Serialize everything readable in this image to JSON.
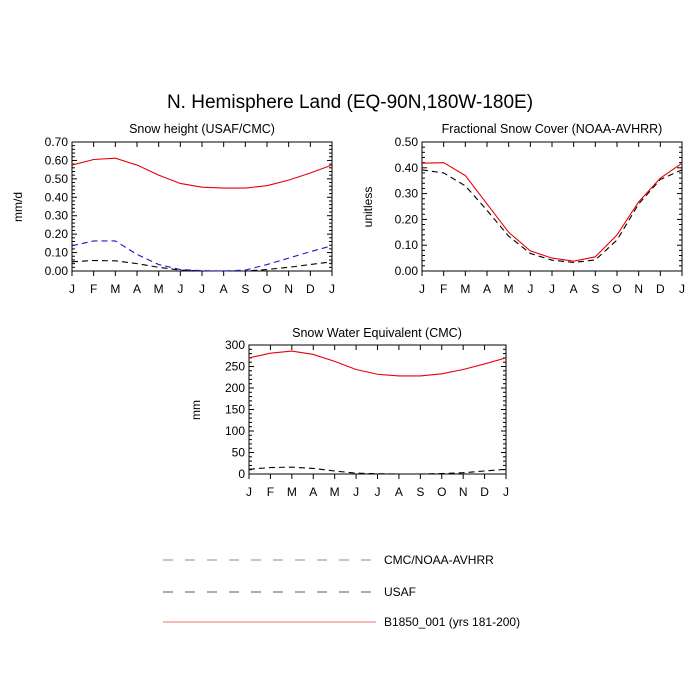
{
  "figure": {
    "title": "N. Hemisphere Land (EQ-90N,180W-180E)"
  },
  "colors": {
    "model": "#e8000a",
    "usaf": "#1a1acc",
    "obs": "#000000",
    "legend_obs": "#888888",
    "legend_usaf": "#4a5a9a",
    "legend_model": "#f07070"
  },
  "legend": {
    "items": [
      {
        "key": "obs",
        "label": "CMC/NOAA-AVHRR",
        "style": "dashed"
      },
      {
        "key": "usaf",
        "label": "USAF",
        "style": "dashed"
      },
      {
        "key": "model",
        "label": "B1850_001 (yrs 181-200)",
        "style": "solid"
      }
    ]
  },
  "chart_data": [
    {
      "id": "snow-height",
      "type": "line",
      "title": "Snow height (USAF/CMC)",
      "ylabel": "mm/d",
      "ylim": [
        0,
        0.7
      ],
      "yticks": [
        0,
        0.1,
        0.2,
        0.3,
        0.4,
        0.5,
        0.6,
        0.7
      ],
      "ytick_labels": [
        "0.00",
        "0.10",
        "0.20",
        "0.30",
        "0.40",
        "0.50",
        "0.60",
        "0.70"
      ],
      "x": [
        0,
        1,
        2,
        3,
        4,
        5,
        6,
        7,
        8,
        9,
        10,
        11,
        12
      ],
      "xtick_labels": [
        "J",
        "F",
        "M",
        "A",
        "M",
        "J",
        "J",
        "A",
        "S",
        "O",
        "N",
        "D",
        "J"
      ],
      "series": [
        {
          "name": "B1850_001 (yrs 181-200)",
          "key": "model",
          "style": "solid",
          "values": [
            0.575,
            0.605,
            0.612,
            0.575,
            0.52,
            0.475,
            0.455,
            0.45,
            0.45,
            0.463,
            0.493,
            0.532,
            0.575
          ]
        },
        {
          "name": "USAF",
          "key": "usaf",
          "style": "dashed",
          "values": [
            0.137,
            0.163,
            0.163,
            0.09,
            0.035,
            0.008,
            0.002,
            0.0,
            0.005,
            0.035,
            0.07,
            0.105,
            0.137
          ]
        },
        {
          "name": "CMC/NOAA-AVHRR",
          "key": "obs",
          "style": "dashed",
          "values": [
            0.05,
            0.057,
            0.055,
            0.04,
            0.02,
            0.005,
            0.0,
            0.0,
            0.0,
            0.008,
            0.02,
            0.035,
            0.05
          ]
        }
      ]
    },
    {
      "id": "snow-cover",
      "type": "line",
      "title": "Fractional Snow Cover (NOAA-AVHRR)",
      "ylabel": "unitless",
      "ylim": [
        0,
        0.5
      ],
      "yticks": [
        0,
        0.1,
        0.2,
        0.3,
        0.4,
        0.5
      ],
      "ytick_labels": [
        "0.00",
        "0.10",
        "0.20",
        "0.30",
        "0.40",
        "0.50"
      ],
      "x": [
        0,
        1,
        2,
        3,
        4,
        5,
        6,
        7,
        8,
        9,
        10,
        11,
        12
      ],
      "xtick_labels": [
        "J",
        "F",
        "M",
        "A",
        "M",
        "J",
        "J",
        "A",
        "S",
        "O",
        "N",
        "D",
        "J"
      ],
      "series": [
        {
          "name": "B1850_001 (yrs 181-200)",
          "key": "model",
          "style": "solid",
          "values": [
            0.418,
            0.42,
            0.37,
            0.26,
            0.15,
            0.078,
            0.05,
            0.038,
            0.055,
            0.14,
            0.268,
            0.36,
            0.418
          ]
        },
        {
          "name": "CMC/NOAA-AVHRR",
          "key": "obs",
          "style": "dashed",
          "values": [
            0.392,
            0.38,
            0.33,
            0.235,
            0.135,
            0.068,
            0.042,
            0.033,
            0.043,
            0.12,
            0.26,
            0.355,
            0.392
          ]
        }
      ]
    },
    {
      "id": "swe",
      "type": "line",
      "title": "Snow Water Equivalent (CMC)",
      "ylabel": "mm",
      "ylim": [
        0,
        300
      ],
      "yticks": [
        0,
        50,
        100,
        150,
        200,
        250,
        300
      ],
      "ytick_labels": [
        "0",
        "50",
        "100",
        "150",
        "200",
        "250",
        "300"
      ],
      "x": [
        0,
        1,
        2,
        3,
        4,
        5,
        6,
        7,
        8,
        9,
        10,
        11,
        12
      ],
      "xtick_labels": [
        "J",
        "F",
        "M",
        "A",
        "M",
        "J",
        "J",
        "A",
        "S",
        "O",
        "N",
        "D",
        "J"
      ],
      "series": [
        {
          "name": "B1850_001 (yrs 181-200)",
          "key": "model",
          "style": "solid",
          "values": [
            270,
            281,
            286,
            278,
            262,
            243,
            232,
            228,
            228,
            233,
            243,
            256,
            270
          ]
        },
        {
          "name": "CMC/NOAA-AVHRR",
          "key": "obs",
          "style": "dashed",
          "values": [
            11,
            15,
            16,
            13,
            7,
            2,
            0.5,
            0,
            0,
            1,
            3,
            7,
            11
          ]
        }
      ]
    }
  ]
}
